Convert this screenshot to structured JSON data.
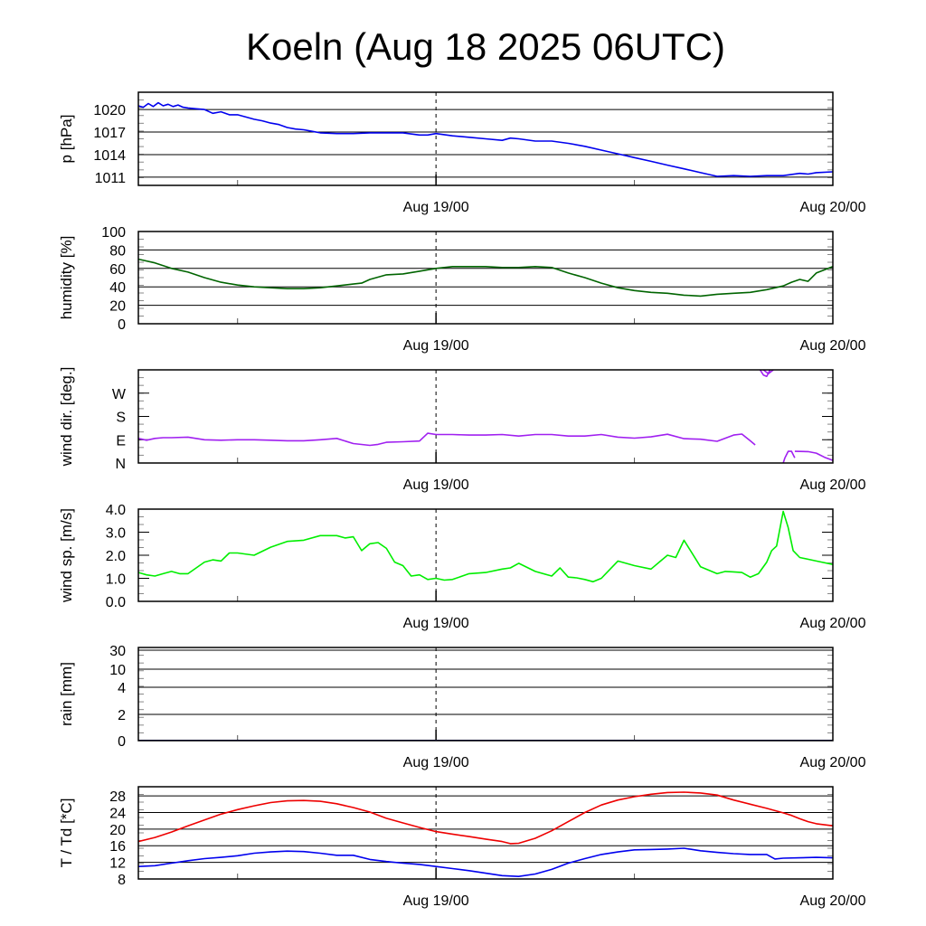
{
  "title": "Koeln (Aug 18 2025 06UTC)",
  "chart_data": [
    {
      "id": "pressure",
      "type": "line",
      "ylabel": "p [hPa]",
      "x_unit": "hours since Aug 18 06UTC",
      "xlim": [
        0,
        42
      ],
      "ylim": [
        1009.9,
        1022.3
      ],
      "yticks": [
        {
          "v": 1011,
          "label": "1011"
        },
        {
          "v": 1014,
          "label": "1014"
        },
        {
          "v": 1017,
          "label": "1017"
        },
        {
          "v": 1020,
          "label": "1020"
        }
      ],
      "xticks": [
        {
          "v": 18,
          "label": "Aug 19/00"
        },
        {
          "v": 42,
          "label": "Aug 20/00"
        }
      ],
      "grid": true,
      "series": [
        {
          "name": "pressure",
          "color": "#0000ee",
          "x": [
            0,
            0.3,
            0.6,
            0.9,
            1.2,
            1.5,
            1.8,
            2.1,
            2.4,
            2.7,
            3,
            3.5,
            4,
            4.5,
            5,
            5.5,
            6,
            6.5,
            7,
            7.5,
            8,
            8.5,
            9,
            9.5,
            10,
            10.5,
            11,
            12,
            13,
            14,
            15,
            16,
            17,
            17.5,
            18,
            19,
            20,
            21,
            22,
            22.5,
            23,
            24,
            25,
            26,
            27,
            28,
            29,
            30,
            31,
            32,
            33,
            34,
            35,
            36,
            37,
            38,
            39,
            40,
            40.5,
            41,
            42
          ],
          "y": [
            1020.5,
            1020.3,
            1020.8,
            1020.4,
            1020.9,
            1020.5,
            1020.7,
            1020.4,
            1020.6,
            1020.3,
            1020.2,
            1020.1,
            1020.0,
            1019.5,
            1019.7,
            1019.3,
            1019.3,
            1019.0,
            1018.7,
            1018.5,
            1018.2,
            1018.0,
            1017.6,
            1017.4,
            1017.3,
            1017.1,
            1016.9,
            1016.8,
            1016.8,
            1016.9,
            1016.9,
            1016.9,
            1016.6,
            1016.6,
            1016.8,
            1016.5,
            1016.3,
            1016.1,
            1015.9,
            1016.2,
            1016.1,
            1015.8,
            1015.8,
            1015.5,
            1015.1,
            1014.6,
            1014.1,
            1013.6,
            1013.1,
            1012.6,
            1012.1,
            1011.6,
            1011.1,
            1011.2,
            1011.1,
            1011.2,
            1011.2,
            1011.5,
            1011.4,
            1011.6,
            1011.7
          ]
        }
      ]
    },
    {
      "id": "humidity",
      "type": "line",
      "ylabel": "humidity [%]",
      "xlim": [
        0,
        42
      ],
      "ylim": [
        0,
        100
      ],
      "yticks": [
        {
          "v": 0,
          "label": "0"
        },
        {
          "v": 20,
          "label": "20"
        },
        {
          "v": 40,
          "label": "40"
        },
        {
          "v": 60,
          "label": "60"
        },
        {
          "v": 80,
          "label": "80"
        },
        {
          "v": 100,
          "label": "100"
        }
      ],
      "xticks": [
        {
          "v": 18,
          "label": "Aug 19/00"
        },
        {
          "v": 42,
          "label": "Aug 20/00"
        }
      ],
      "grid": true,
      "series": [
        {
          "name": "humidity",
          "color": "#006400",
          "x": [
            0,
            1,
            2,
            3,
            4,
            5,
            6,
            7,
            8,
            9,
            10,
            11,
            12,
            13,
            13.5,
            14,
            15,
            16,
            17,
            18,
            19,
            20,
            21,
            22,
            23,
            24,
            25,
            26,
            27,
            28,
            29,
            30,
            31,
            32,
            33,
            34,
            35,
            36,
            37,
            38,
            39,
            39.5,
            40,
            40.5,
            41,
            42
          ],
          "y": [
            70,
            66,
            60,
            56,
            50,
            45,
            42,
            40,
            39,
            38,
            38,
            39,
            41,
            43,
            44,
            48,
            53,
            54,
            57,
            60,
            62,
            62,
            62,
            61,
            61,
            62,
            61,
            55,
            50,
            44,
            39,
            36,
            34,
            33,
            31,
            30,
            32,
            33,
            34,
            37,
            41,
            45,
            48,
            46,
            55,
            62
          ]
        }
      ]
    },
    {
      "id": "wind_direction",
      "type": "line",
      "ylabel": "wind dir. [deg.]",
      "xlim": [
        0,
        42
      ],
      "ylim": [
        0,
        360
      ],
      "yticks": [
        {
          "v": 0,
          "label": "N"
        },
        {
          "v": 90,
          "label": "E"
        },
        {
          "v": 180,
          "label": "S"
        },
        {
          "v": 270,
          "label": "W"
        }
      ],
      "xticks": [
        {
          "v": 18,
          "label": "Aug 19/00"
        },
        {
          "v": 42,
          "label": "Aug 20/00"
        }
      ],
      "grid": false,
      "series": [
        {
          "name": "wind direction",
          "color": "#a020f0",
          "x": [
            0,
            0.5,
            1,
            1.5,
            2,
            3,
            4,
            5,
            6,
            7,
            8,
            9,
            10,
            11,
            12,
            13,
            14,
            14.5,
            15,
            16,
            17,
            17.5,
            18,
            19,
            20,
            21,
            22,
            23,
            24,
            25,
            26,
            27,
            28,
            29,
            30,
            31,
            32,
            33,
            34,
            35,
            36,
            36.5,
            37,
            37.3
          ],
          "y": [
            95,
            88,
            95,
            98,
            98,
            100,
            90,
            88,
            90,
            90,
            88,
            86,
            86,
            90,
            95,
            75,
            68,
            72,
            80,
            82,
            85,
            115,
            110,
            110,
            108,
            108,
            110,
            104,
            110,
            110,
            104,
            104,
            110,
            100,
            96,
            101,
            111,
            94,
            92,
            84,
            108,
            112,
            86,
            70
          ]
        },
        {
          "name": "wind direction (wrap 1)",
          "color": "#a020f0",
          "x": [
            39.0,
            39.1,
            39.3,
            39.5,
            39.7
          ],
          "y": [
            0,
            20,
            45,
            45,
            20
          ]
        },
        {
          "name": "wind direction (wrap 2)",
          "color": "#a020f0",
          "x": [
            37.6,
            37.8,
            38.0,
            38.2
          ],
          "y": [
            360,
            340,
            335,
            360
          ]
        },
        {
          "name": "wind direction (wrap 3)",
          "color": "#a020f0",
          "x": [
            37.8,
            38.1,
            38.4
          ],
          "y": [
            360,
            345,
            360
          ]
        },
        {
          "name": "wind direction (end)",
          "color": "#a020f0",
          "x": [
            39.7,
            40.5,
            41,
            41.5,
            42
          ],
          "y": [
            45,
            44,
            38,
            22,
            10
          ]
        }
      ]
    },
    {
      "id": "wind_speed",
      "type": "line",
      "ylabel": "wind sp. [m/s]",
      "xlim": [
        0,
        42
      ],
      "ylim": [
        0,
        4.0
      ],
      "yticks": [
        {
          "v": 0,
          "label": "0.0"
        },
        {
          "v": 1,
          "label": "1.0"
        },
        {
          "v": 2,
          "label": "2.0"
        },
        {
          "v": 3,
          "label": "3.0"
        },
        {
          "v": 4,
          "label": "4.0"
        }
      ],
      "xticks": [
        {
          "v": 18,
          "label": "Aug 19/00"
        },
        {
          "v": 42,
          "label": "Aug 20/00"
        }
      ],
      "grid": false,
      "series": [
        {
          "name": "wind speed",
          "color": "#00ee00",
          "x": [
            0,
            0.5,
            1,
            1.5,
            2,
            2.5,
            3,
            3.5,
            4,
            4.5,
            5,
            5.5,
            6,
            7,
            8,
            9,
            10,
            11,
            12,
            12.5,
            13,
            13.5,
            14,
            14.5,
            15,
            15.5,
            16,
            16.5,
            17,
            17.5,
            18,
            18.5,
            19,
            20,
            21,
            22,
            22.5,
            23,
            24,
            25,
            25.5,
            26,
            26.5,
            27,
            27.5,
            28,
            29,
            30,
            31,
            31.5,
            32,
            32.5,
            33,
            34,
            35,
            35.5,
            36,
            36.5,
            37,
            37.5,
            38,
            38.3,
            38.6,
            39,
            39.3,
            39.6,
            40,
            41,
            42
          ],
          "y": [
            1.25,
            1.15,
            1.1,
            1.2,
            1.3,
            1.2,
            1.2,
            1.45,
            1.7,
            1.8,
            1.75,
            2.1,
            2.1,
            2.0,
            2.35,
            2.6,
            2.65,
            2.85,
            2.85,
            2.75,
            2.8,
            2.2,
            2.5,
            2.55,
            2.3,
            1.7,
            1.55,
            1.1,
            1.15,
            0.95,
            1.0,
            0.92,
            0.95,
            1.2,
            1.25,
            1.4,
            1.45,
            1.65,
            1.3,
            1.1,
            1.45,
            1.05,
            1.02,
            0.95,
            0.85,
            1.0,
            1.75,
            1.55,
            1.4,
            1.7,
            2.0,
            1.9,
            2.65,
            1.5,
            1.2,
            1.3,
            1.28,
            1.25,
            1.05,
            1.2,
            1.7,
            2.2,
            2.4,
            3.9,
            3.2,
            2.2,
            1.9,
            1.75,
            1.6
          ]
        }
      ]
    },
    {
      "id": "rain",
      "type": "line",
      "ylabel": "rain [mm]",
      "xlim": [
        0,
        42
      ],
      "ylim": [
        0,
        30
      ],
      "yticks": [
        {
          "v": 0,
          "label": "0"
        },
        {
          "v": 2,
          "label": "2"
        },
        {
          "v": 4,
          "label": "4"
        },
        {
          "v": 10,
          "label": "10"
        },
        {
          "v": 30,
          "label": "30"
        }
      ],
      "xticks": [
        {
          "v": 18,
          "label": "Aug 19/00"
        },
        {
          "v": 42,
          "label": "Aug 20/00"
        }
      ],
      "grid": true,
      "series": [
        {
          "name": "rain",
          "color": "#000080",
          "x": [
            0,
            42
          ],
          "y": [
            0,
            0
          ]
        }
      ]
    },
    {
      "id": "temperature",
      "type": "line",
      "ylabel": "T / Td [*C]",
      "xlim": [
        0,
        42
      ],
      "ylim": [
        8,
        30.2
      ],
      "yticks": [
        {
          "v": 8,
          "label": "8"
        },
        {
          "v": 12,
          "label": "12"
        },
        {
          "v": 16,
          "label": "16"
        },
        {
          "v": 20,
          "label": "20"
        },
        {
          "v": 24,
          "label": "24"
        },
        {
          "v": 28,
          "label": "28"
        }
      ],
      "xticks": [
        {
          "v": 18,
          "label": "Aug 19/00"
        },
        {
          "v": 42,
          "label": "Aug 20/00"
        }
      ],
      "grid": true,
      "series": [
        {
          "name": "T",
          "color": "#ee0000",
          "x": [
            0,
            1,
            2,
            3,
            4,
            5,
            6,
            7,
            8,
            9,
            10,
            11,
            12,
            13,
            14,
            15,
            16,
            17,
            18,
            19,
            20,
            21,
            22,
            22.5,
            23,
            24,
            25,
            26,
            27,
            28,
            29,
            30,
            31,
            32,
            33,
            34,
            35,
            36,
            37,
            38,
            39,
            39.5,
            40,
            40.5,
            41,
            42
          ],
          "y": [
            17.0,
            18.0,
            19.3,
            20.8,
            22.2,
            23.6,
            24.7,
            25.6,
            26.4,
            26.8,
            26.9,
            26.7,
            26.1,
            25.2,
            24.1,
            22.6,
            21.5,
            20.4,
            19.4,
            18.8,
            18.2,
            17.6,
            17.0,
            16.5,
            16.6,
            17.8,
            19.6,
            21.8,
            24.0,
            25.8,
            27.0,
            27.8,
            28.4,
            28.8,
            28.9,
            28.7,
            28.2,
            27.0,
            26.0,
            25.0,
            23.9,
            23.3,
            22.5,
            21.8,
            21.3,
            20.8
          ]
        },
        {
          "name": "Td",
          "color": "#0000ee",
          "x": [
            0,
            1,
            2,
            3,
            4,
            5,
            6,
            7,
            8,
            9,
            10,
            11,
            12,
            13,
            14,
            15,
            16,
            17,
            18,
            19,
            20,
            21,
            22,
            23,
            24,
            25,
            26,
            27,
            28,
            29,
            30,
            31,
            32,
            33,
            34,
            35,
            36,
            37,
            38,
            38.5,
            39,
            40,
            41,
            42
          ],
          "y": [
            11.0,
            11.2,
            11.8,
            12.4,
            12.9,
            13.2,
            13.6,
            14.2,
            14.5,
            14.7,
            14.6,
            14.2,
            13.7,
            13.7,
            12.7,
            12.2,
            11.8,
            11.5,
            11.0,
            10.5,
            10.0,
            9.4,
            8.8,
            8.6,
            9.2,
            10.3,
            11.8,
            12.9,
            13.9,
            14.5,
            15.0,
            15.1,
            15.2,
            15.4,
            14.8,
            14.4,
            14.1,
            13.9,
            13.9,
            12.8,
            13.0,
            13.1,
            13.2,
            13.1
          ]
        }
      ]
    }
  ]
}
